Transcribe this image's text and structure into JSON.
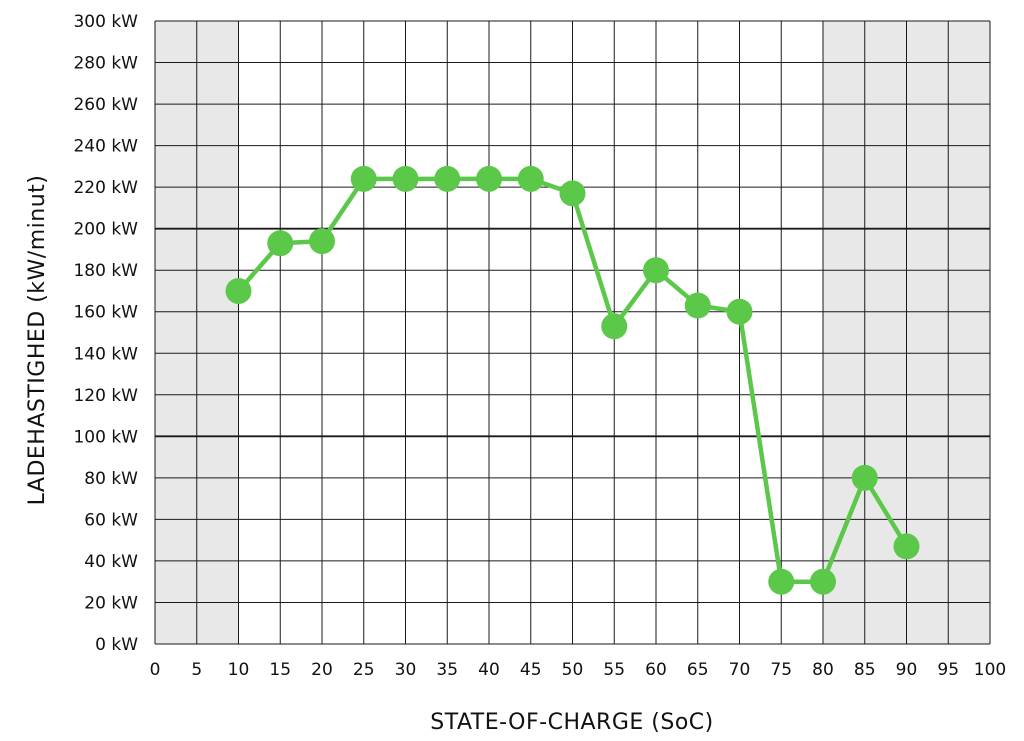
{
  "chart_data": {
    "type": "line",
    "title": "",
    "xlabel": "STATE-OF-CHARGE (SoC)",
    "ylabel": "LADEHASTIGHED (kW/minut)",
    "xlim": [
      0,
      100
    ],
    "ylim": [
      0,
      300
    ],
    "x_ticks": [
      "0",
      "5",
      "10",
      "15",
      "20",
      "25",
      "30",
      "35",
      "40",
      "45",
      "50",
      "55",
      "60",
      "65",
      "70",
      "75",
      "80",
      "85",
      "90",
      "95",
      "100"
    ],
    "y_ticks": [
      "0 kW",
      "20 kW",
      "40 kW",
      "60 kW",
      "80 kW",
      "100 kW",
      "120 kW",
      "140 kW",
      "160 kW",
      "180 kW",
      "200 kW",
      "220 kW",
      "240 kW",
      "260 kW",
      "280 kW",
      "300 kW"
    ],
    "major_y_gridlines": [
      100,
      200
    ],
    "shaded_x_ranges": [
      [
        0,
        10
      ],
      [
        80,
        100
      ]
    ],
    "grid": true,
    "series": [
      {
        "color": "#5cc84a",
        "x": [
          10,
          15,
          20,
          25,
          30,
          35,
          40,
          45,
          50,
          55,
          60,
          65,
          70,
          75,
          80,
          85,
          90
        ],
        "values": [
          170,
          193,
          194,
          224,
          224,
          224,
          224,
          224,
          217,
          153,
          180,
          163,
          160,
          30,
          30,
          80,
          47
        ]
      }
    ],
    "colors": {
      "shade": "#e8e8e8",
      "grid": "#1a1a1a",
      "line": "#5cc84a"
    }
  }
}
